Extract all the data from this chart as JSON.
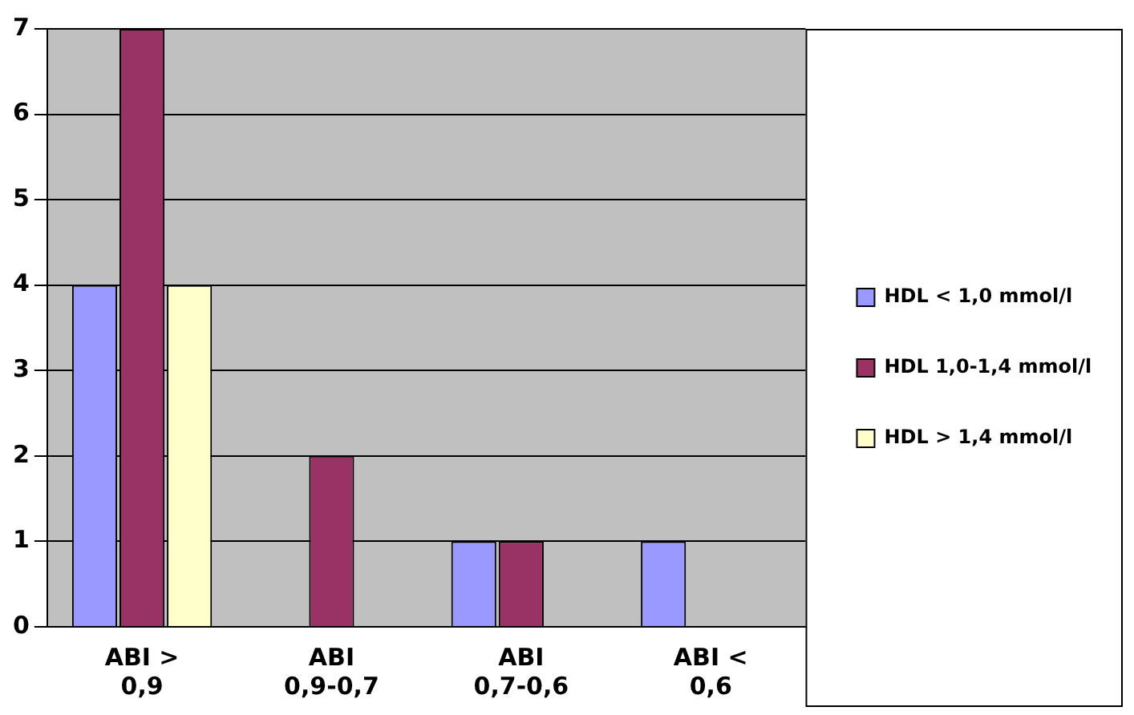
{
  "chart_data": {
    "type": "bar",
    "categories": [
      "ABI > 0,9",
      "ABI 0,9-0,7",
      "ABI 0,7-0,6",
      "ABI < 0,6"
    ],
    "series": [
      {
        "name": "HDL < 1,0 mmol/l",
        "color": "#9999ff",
        "values": [
          4,
          0,
          1,
          1
        ]
      },
      {
        "name": "HDL 1,0-1,4 mmol/l",
        "color": "#993366",
        "values": [
          7,
          2,
          1,
          0
        ]
      },
      {
        "name": "HDL > 1,4 mmol/l",
        "color": "#ffffcc",
        "values": [
          4,
          0,
          0,
          0
        ]
      }
    ],
    "ylim": [
      0,
      7
    ],
    "yticks": [
      0,
      1,
      2,
      3,
      4,
      5,
      6,
      7
    ],
    "grid": "y",
    "legend": "right"
  }
}
